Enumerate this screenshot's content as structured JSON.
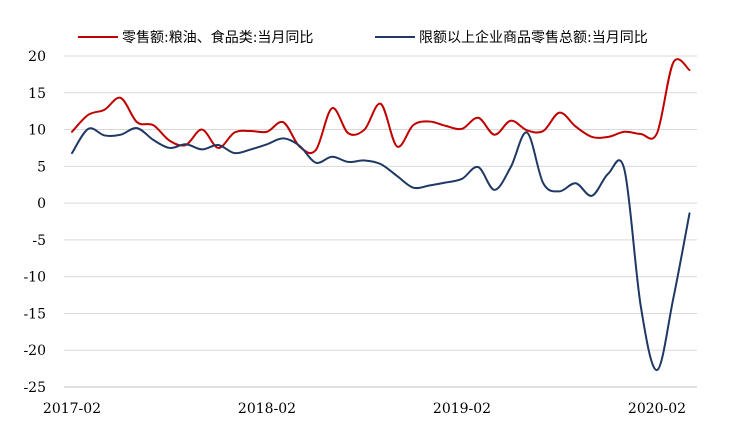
{
  "chart_data": {
    "type": "line",
    "title": "",
    "xlabel": "",
    "ylabel": "",
    "ylim": [
      -25,
      20
    ],
    "yticks": [
      20,
      15,
      10,
      5,
      0,
      -5,
      -10,
      -15,
      -20,
      -25
    ],
    "grid": true,
    "legend_position": "top",
    "x_tick_labels": [
      "2017-02",
      "2018-02",
      "2019-02",
      "2020-02"
    ],
    "x_tick_indices": [
      0,
      12,
      24,
      36
    ],
    "series": [
      {
        "name": "零售额:粮油、食品类:当月同比",
        "color": "#c00000",
        "values": [
          9.7,
          12.0,
          12.7,
          14.3,
          11.0,
          10.6,
          8.5,
          7.9,
          10.0,
          7.5,
          9.6,
          9.8,
          9.7,
          11.0,
          7.7,
          7.2,
          12.9,
          9.5,
          10.0,
          13.5,
          7.7,
          10.6,
          11.1,
          10.5,
          10.1,
          11.6,
          9.3,
          11.2,
          9.9,
          9.8,
          12.3,
          10.4,
          9.0,
          9.0,
          9.7,
          9.4,
          9.5,
          19.1,
          18.1
        ]
      },
      {
        "name": "限额以上企业商品零售总额:当月同比",
        "color": "#1f3864",
        "values": [
          6.8,
          10.1,
          9.2,
          9.3,
          10.2,
          8.6,
          7.5,
          8.0,
          7.3,
          7.9,
          6.8,
          7.3,
          8.0,
          8.8,
          7.8,
          5.5,
          6.3,
          5.6,
          5.8,
          5.3,
          3.7,
          2.1,
          2.4,
          2.8,
          3.3,
          4.9,
          1.8,
          4.9,
          9.6,
          2.7,
          1.6,
          2.7,
          1.0,
          4.0,
          4.5,
          -14.0,
          -22.7,
          -13.0,
          -1.4
        ]
      }
    ]
  }
}
